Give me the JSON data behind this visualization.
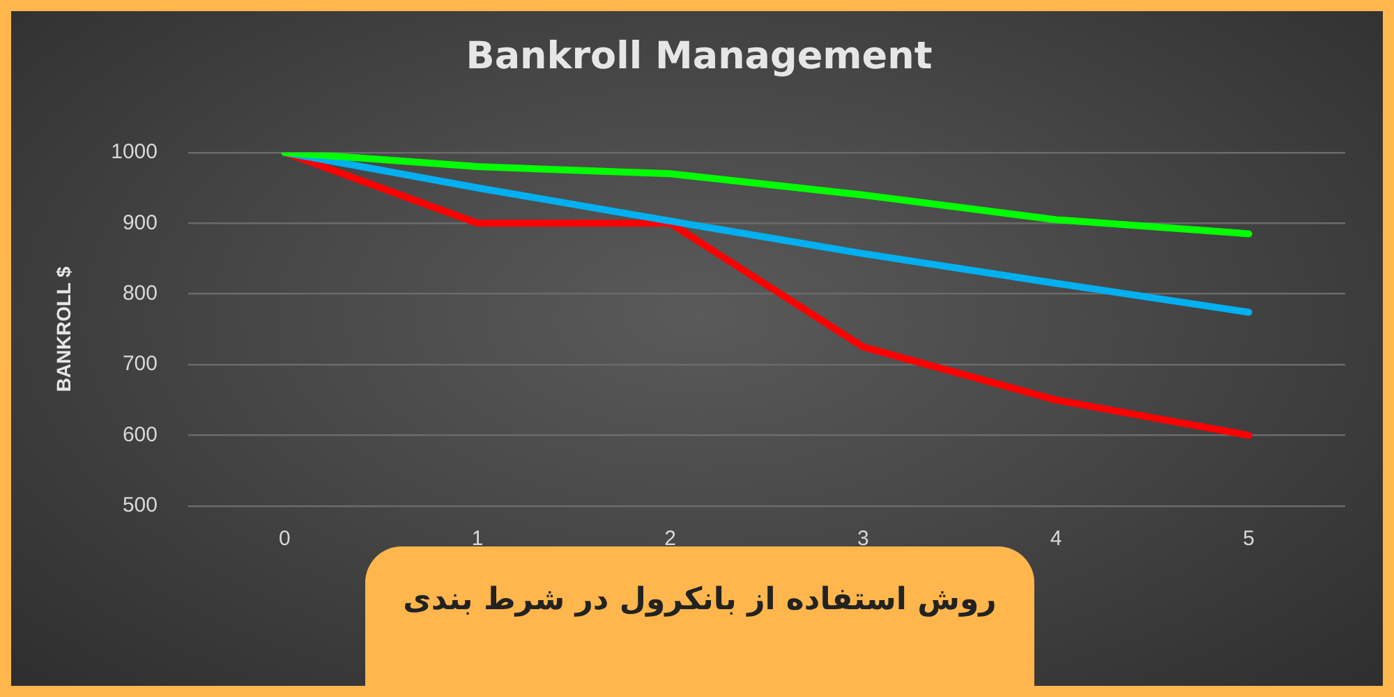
{
  "chart_data": {
    "type": "line",
    "title": "Bankroll Management",
    "ylabel": "BANKROLL $",
    "categories": [
      "0",
      "1",
      "2",
      "3",
      "4",
      "5"
    ],
    "series": [
      {
        "color": "#00ff00",
        "values": [
          1000,
          980,
          970,
          940,
          905,
          885
        ]
      },
      {
        "color": "#00b0f0",
        "values": [
          1000,
          950,
          903,
          857,
          815,
          774
        ]
      },
      {
        "color": "#ff0000",
        "values": [
          1000,
          900,
          900,
          725,
          650,
          600
        ]
      }
    ],
    "ylim": [
      500,
      1000
    ],
    "yticks": [
      500,
      600,
      700,
      800,
      900,
      1000
    ],
    "grid": "y",
    "legend": false,
    "marker": "none",
    "line_style": "solid",
    "annotations": [
      "روش استفاده از بانکرول در شرط بندی"
    ]
  }
}
